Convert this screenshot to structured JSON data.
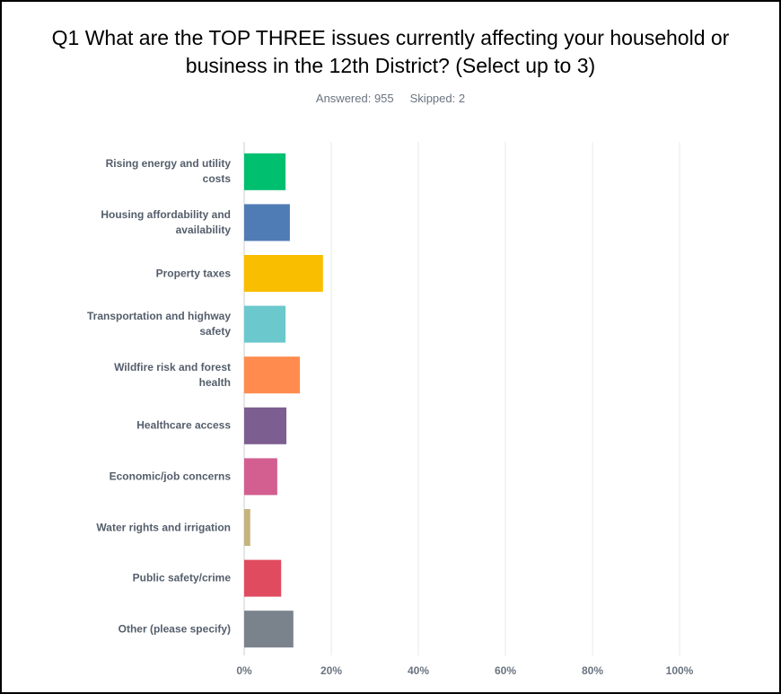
{
  "chart_data": {
    "type": "bar",
    "orientation": "horizontal",
    "title": "Q1 What are the TOP THREE issues currently affecting your household or business in the 12th District? (Select up to 3)",
    "answered": "Answered: 955",
    "skipped": "Skipped: 2",
    "categories": [
      "Rising energy and utility costs",
      "Housing affordability and availability",
      "Property taxes",
      "Transportation and highway safety",
      "Wildfire risk and forest health",
      "Healthcare access",
      "Economic/job concerns",
      "Water rights and irrigation",
      "Public safety/crime",
      "Other (please specify)"
    ],
    "values": [
      9.5,
      10.5,
      18.1,
      9.5,
      12.8,
      9.7,
      7.6,
      1.4,
      8.5,
      11.3
    ],
    "colors": [
      "#00bf6f",
      "#507cb6",
      "#f9be00",
      "#6bc8cd",
      "#ff8b4f",
      "#7d5e90",
      "#d25f90",
      "#c5b47d",
      "#e04b5f",
      "#7a828b"
    ],
    "xlim": [
      0,
      100
    ],
    "xticks": [
      {
        "value": 0,
        "label": "0%"
      },
      {
        "value": 20,
        "label": "20%"
      },
      {
        "value": 40,
        "label": "40%"
      },
      {
        "value": 60,
        "label": "60%"
      },
      {
        "value": 80,
        "label": "80%"
      },
      {
        "value": 100,
        "label": "100%"
      }
    ],
    "grid": true
  }
}
